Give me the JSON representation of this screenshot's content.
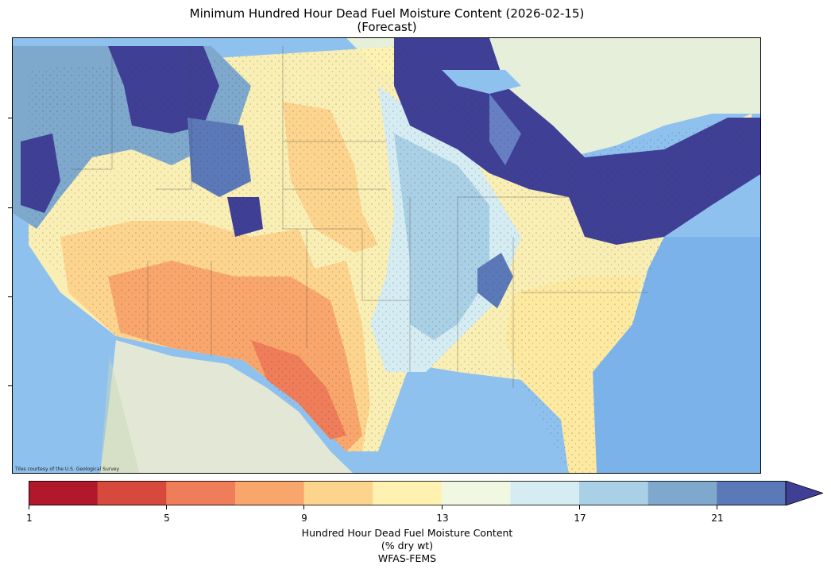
{
  "title": {
    "line1": "Minimum Hundred Hour Dead Fuel Moisture Content (2026-02-15)",
    "line2": "(Forecast)"
  },
  "map": {
    "attribution": "Tiles courtesy of the U.S. Geological Survey",
    "ocean_color": "#8fc1ef",
    "land_color": "#eaf0e2"
  },
  "colorbar": {
    "tick_labels": [
      "1",
      "5",
      "9",
      "13",
      "17",
      "21"
    ],
    "label_line1": "Hundred Hour Dead Fuel Moisture Content",
    "label_line2": "(% dry wt)",
    "label_line3": "WFAS-FEMS",
    "colors": [
      "#b2182b",
      "#d6493d",
      "#ef7d59",
      "#f9a66c",
      "#fdd48e",
      "#fff1b0",
      "#f1f8e2",
      "#d5ecf3",
      "#a9d0e4",
      "#7ea8cc",
      "#5b79b8",
      "#3f3f96"
    ]
  }
}
